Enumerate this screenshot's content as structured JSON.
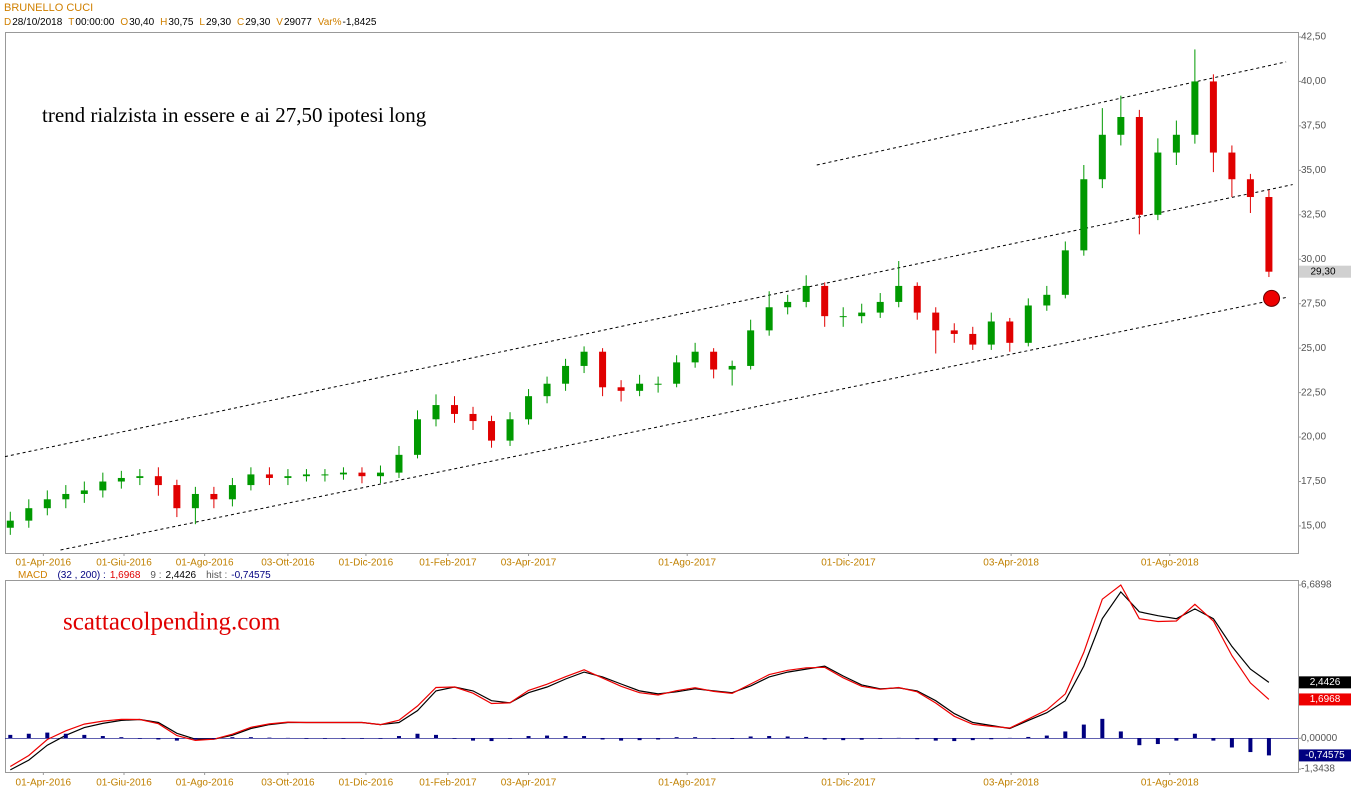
{
  "header": {
    "symbol": "BRUNELLO CUCI",
    "readout": [
      {
        "key": "D",
        "value": "28/10/2018"
      },
      {
        "key": "T",
        "value": "00:00:00"
      },
      {
        "key": "O",
        "value": "30,40"
      },
      {
        "key": "H",
        "value": "30,75"
      },
      {
        "key": "L",
        "value": "29,30"
      },
      {
        "key": "C",
        "value": "29,30"
      },
      {
        "key": "V",
        "value": "29077"
      },
      {
        "key": "Var%",
        "value": "-1,8425"
      }
    ]
  },
  "chart_data": [
    {
      "type": "candlestick",
      "annotations": [
        "trend rialzista in essere e ai 27,50 ipotesi long"
      ],
      "last_price_label": "29,30",
      "up_color": "#009900",
      "down_color": "#e00000",
      "x": [
        "2016-03-07",
        "2016-03-21",
        "2016-04-04",
        "2016-04-18",
        "2016-05-02",
        "2016-05-16",
        "2016-05-30",
        "2016-06-13",
        "2016-06-27",
        "2016-07-11",
        "2016-07-25",
        "2016-08-08",
        "2016-08-22",
        "2016-09-05",
        "2016-09-19",
        "2016-10-03",
        "2016-10-17",
        "2016-10-31",
        "2016-11-14",
        "2016-11-28",
        "2016-12-12",
        "2016-12-26",
        "2017-01-09",
        "2017-01-23",
        "2017-02-06",
        "2017-02-20",
        "2017-03-06",
        "2017-03-20",
        "2017-04-03",
        "2017-04-17",
        "2017-05-01",
        "2017-05-15",
        "2017-05-29",
        "2017-06-12",
        "2017-06-26",
        "2017-07-10",
        "2017-07-24",
        "2017-08-07",
        "2017-08-21",
        "2017-09-04",
        "2017-09-18",
        "2017-10-02",
        "2017-10-16",
        "2017-10-30",
        "2017-11-13",
        "2017-11-27",
        "2017-12-11",
        "2017-12-25",
        "2018-01-08",
        "2018-01-22",
        "2018-02-05",
        "2018-02-19",
        "2018-03-05",
        "2018-03-19",
        "2018-04-02",
        "2018-04-16",
        "2018-04-30",
        "2018-05-14",
        "2018-05-28",
        "2018-06-11",
        "2018-06-25",
        "2018-07-09",
        "2018-07-23",
        "2018-08-06",
        "2018-08-20",
        "2018-09-03",
        "2018-09-17",
        "2018-10-01",
        "2018-10-15"
      ],
      "open": [
        14.9,
        15.3,
        16.0,
        16.5,
        16.8,
        17.0,
        17.5,
        17.7,
        17.8,
        17.3,
        16.0,
        16.8,
        16.5,
        17.3,
        17.9,
        17.7,
        17.8,
        17.9,
        17.9,
        18.0,
        17.8,
        18.0,
        19.0,
        21.0,
        21.8,
        21.3,
        20.9,
        19.8,
        21.0,
        22.3,
        23.0,
        24.0,
        24.8,
        22.8,
        22.6,
        23.0,
        23.0,
        24.2,
        24.8,
        23.8,
        24.0,
        26.0,
        27.3,
        27.6,
        28.5,
        26.8,
        26.8,
        27.0,
        27.6,
        28.5,
        27.0,
        26.0,
        25.8,
        25.2,
        26.5,
        25.3,
        27.4,
        28.0,
        30.5,
        34.5,
        37.0,
        38.0,
        32.5,
        36.0,
        37.0,
        40.0,
        36.0,
        34.5,
        33.5
      ],
      "high": [
        15.8,
        16.5,
        17.0,
        17.3,
        17.5,
        18.0,
        18.1,
        18.2,
        18.3,
        17.6,
        17.2,
        17.2,
        17.7,
        18.3,
        18.3,
        18.2,
        18.2,
        18.2,
        18.3,
        18.3,
        18.4,
        19.5,
        21.5,
        22.4,
        22.3,
        21.7,
        21.2,
        21.4,
        22.7,
        23.4,
        24.4,
        25.1,
        25.0,
        23.2,
        23.5,
        23.4,
        24.6,
        25.3,
        25.0,
        24.3,
        26.6,
        28.2,
        28.0,
        29.1,
        28.7,
        27.3,
        27.5,
        28.1,
        29.9,
        28.7,
        27.3,
        26.4,
        26.2,
        27.0,
        26.7,
        27.8,
        28.5,
        31.0,
        35.3,
        38.5,
        39.2,
        38.4,
        36.8,
        37.8,
        41.8,
        40.4,
        36.4,
        34.8,
        33.9
      ],
      "low": [
        14.5,
        14.9,
        15.6,
        16.0,
        16.3,
        16.6,
        17.1,
        17.3,
        16.7,
        15.5,
        15.1,
        16.0,
        16.1,
        17.0,
        17.3,
        17.3,
        17.5,
        17.5,
        17.6,
        17.4,
        17.4,
        17.7,
        18.8,
        20.6,
        20.8,
        20.4,
        19.4,
        19.5,
        20.7,
        21.9,
        22.6,
        23.6,
        22.3,
        22.0,
        22.3,
        22.5,
        22.8,
        23.9,
        23.3,
        22.9,
        23.8,
        25.7,
        26.9,
        27.3,
        26.2,
        26.2,
        26.4,
        26.7,
        27.3,
        26.6,
        24.7,
        25.3,
        24.9,
        24.9,
        24.8,
        25.1,
        27.1,
        27.8,
        30.2,
        34.0,
        36.4,
        31.4,
        32.2,
        35.3,
        36.5,
        34.9,
        33.5,
        32.6,
        29.0
      ],
      "close": [
        15.3,
        16.0,
        16.5,
        16.8,
        17.0,
        17.5,
        17.7,
        17.8,
        17.3,
        16.0,
        16.8,
        16.5,
        17.3,
        17.9,
        17.7,
        17.8,
        17.9,
        17.9,
        18.0,
        17.8,
        18.0,
        19.0,
        21.0,
        21.8,
        21.3,
        20.9,
        19.8,
        21.0,
        22.3,
        23.0,
        24.0,
        24.8,
        22.8,
        22.6,
        23.0,
        23.0,
        24.2,
        24.8,
        23.8,
        24.0,
        26.0,
        27.3,
        27.6,
        28.5,
        26.8,
        26.8,
        27.0,
        27.6,
        28.5,
        27.0,
        26.0,
        25.8,
        25.2,
        26.5,
        25.3,
        27.4,
        28.0,
        30.5,
        34.5,
        37.0,
        38.0,
        32.5,
        36.0,
        37.0,
        40.0,
        36.0,
        34.5,
        33.5,
        29.3
      ],
      "trendlines": [
        {
          "x": [
            "2016-03-03",
            "2018-11-02"
          ],
          "y": [
            18.9,
            34.2
          ]
        },
        {
          "x": [
            "2016-04-14",
            "2018-10-30"
          ],
          "y": [
            13.65,
            27.88
          ]
        },
        {
          "x": [
            "2017-11-07",
            "2018-10-28"
          ],
          "y": [
            35.3,
            41.1
          ]
        }
      ],
      "marker": {
        "x": "2018-10-17",
        "y": 27.8,
        "color": "#ee0000"
      },
      "xlim": [
        "2016-03-03",
        "2018-11-06"
      ],
      "xticks": [
        {
          "value": "2016-04-01",
          "label": "01-Apr-2016"
        },
        {
          "value": "2016-06-01",
          "label": "01-Giu-2016"
        },
        {
          "value": "2016-08-01",
          "label": "01-Ago-2016"
        },
        {
          "value": "2016-10-03",
          "label": "03-Ott-2016"
        },
        {
          "value": "2016-12-01",
          "label": "01-Dic-2016"
        },
        {
          "value": "2017-02-01",
          "label": "01-Feb-2017"
        },
        {
          "value": "2017-04-03",
          "label": "03-Apr-2017"
        },
        {
          "value": "2017-08-01",
          "label": "01-Ago-2017"
        },
        {
          "value": "2017-12-01",
          "label": "01-Dic-2017"
        },
        {
          "value": "2018-04-03",
          "label": "03-Apr-2018"
        },
        {
          "value": "2018-08-01",
          "label": "01-Ago-2018"
        }
      ],
      "ylim": [
        13.48,
        42.78
      ],
      "yticks": [
        {
          "value": 15,
          "label": "15,00"
        },
        {
          "value": 17.5,
          "label": "17,50"
        },
        {
          "value": 20,
          "label": "20,00"
        },
        {
          "value": 22.5,
          "label": "22,50"
        },
        {
          "value": 25,
          "label": "25,00"
        },
        {
          "value": 27.5,
          "label": "27,50"
        },
        {
          "value": 30,
          "label": "30,00"
        },
        {
          "value": 32.5,
          "label": "32,50"
        },
        {
          "value": 35,
          "label": "35,00"
        },
        {
          "value": 37.5,
          "label": "37,50"
        },
        {
          "value": 40,
          "label": "40,00"
        },
        {
          "value": 42.5,
          "label": "42,50"
        }
      ]
    },
    {
      "type": "line",
      "annotations": [
        "scattacolpending.com"
      ],
      "readout": {
        "label": "MACD",
        "params": "(32 , 200) :",
        "macd": "1,6968",
        "signal_label": "9 :",
        "signal": "2,4426",
        "hist_label": "hist :",
        "hist": "-0,74575"
      },
      "x": [
        "2016-03-07",
        "2016-03-21",
        "2016-04-04",
        "2016-04-18",
        "2016-05-02",
        "2016-05-16",
        "2016-05-30",
        "2016-06-13",
        "2016-06-27",
        "2016-07-11",
        "2016-07-25",
        "2016-08-08",
        "2016-08-22",
        "2016-09-05",
        "2016-09-19",
        "2016-10-03",
        "2016-10-17",
        "2016-10-31",
        "2016-11-14",
        "2016-11-28",
        "2016-12-12",
        "2016-12-26",
        "2017-01-09",
        "2017-01-23",
        "2017-02-06",
        "2017-02-20",
        "2017-03-06",
        "2017-03-20",
        "2017-04-03",
        "2017-04-17",
        "2017-05-01",
        "2017-05-15",
        "2017-05-29",
        "2017-06-12",
        "2017-06-26",
        "2017-07-10",
        "2017-07-24",
        "2017-08-07",
        "2017-08-21",
        "2017-09-04",
        "2017-09-18",
        "2017-10-02",
        "2017-10-16",
        "2017-10-30",
        "2017-11-13",
        "2017-11-27",
        "2017-12-11",
        "2017-12-25",
        "2018-01-08",
        "2018-01-22",
        "2018-02-05",
        "2018-02-19",
        "2018-03-05",
        "2018-03-19",
        "2018-04-02",
        "2018-04-16",
        "2018-04-30",
        "2018-05-14",
        "2018-05-28",
        "2018-06-11",
        "2018-06-25",
        "2018-07-09",
        "2018-07-23",
        "2018-08-06",
        "2018-08-20",
        "2018-09-03",
        "2018-09-17",
        "2018-10-01",
        "2018-10-15"
      ],
      "series": [
        {
          "color": "#000000",
          "kind": "line",
          "values": [
            -1.38,
            -0.95,
            -0.3,
            0.13,
            0.47,
            0.65,
            0.78,
            0.82,
            0.69,
            0.22,
            -0.04,
            -0.04,
            0.13,
            0.43,
            0.6,
            0.69,
            0.69,
            0.69,
            0.69,
            0.69,
            0.6,
            0.69,
            1.21,
            2.07,
            2.24,
            2.07,
            1.64,
            1.55,
            1.99,
            2.24,
            2.59,
            2.89,
            2.68,
            2.37,
            2.07,
            1.94,
            2.03,
            2.16,
            2.07,
            1.99,
            2.29,
            2.68,
            2.89,
            3.02,
            3.15,
            2.72,
            2.33,
            2.16,
            2.2,
            2.07,
            1.64,
            1.08,
            0.69,
            0.56,
            0.43,
            0.78,
            1.12,
            1.64,
            3.15,
            5.22,
            6.39,
            5.52,
            5.35,
            5.22,
            5.65,
            5.22,
            4.01,
            3.02,
            2.4426
          ]
        },
        {
          "color": "#ee0000",
          "kind": "line",
          "values": [
            -1.23,
            -0.75,
            -0.05,
            0.33,
            0.62,
            0.75,
            0.83,
            0.82,
            0.64,
            0.12,
            -0.09,
            -0.04,
            0.18,
            0.48,
            0.63,
            0.71,
            0.69,
            0.69,
            0.69,
            0.69,
            0.6,
            0.79,
            1.41,
            2.22,
            2.24,
            1.97,
            1.52,
            1.55,
            2.09,
            2.36,
            2.69,
            2.99,
            2.63,
            2.27,
            1.99,
            1.89,
            2.08,
            2.21,
            2.05,
            1.96,
            2.37,
            2.78,
            2.97,
            3.08,
            3.1,
            2.64,
            2.27,
            2.14,
            2.22,
            2.03,
            1.54,
            0.96,
            0.61,
            0.52,
            0.45,
            0.84,
            1.24,
            1.94,
            3.75,
            6.07,
            6.69,
            5.22,
            5.1,
            5.12,
            5.85,
            5.12,
            3.61,
            2.42,
            1.6968
          ]
        },
        {
          "color": "#000080",
          "kind": "bar",
          "values": [
            0.15,
            0.2,
            0.25,
            0.2,
            0.15,
            0.1,
            0.05,
            0.0,
            -0.05,
            -0.1,
            -0.05,
            0.0,
            0.05,
            0.05,
            0.03,
            0.02,
            0.0,
            0.0,
            0.0,
            0.0,
            0.0,
            0.1,
            0.2,
            0.15,
            0.0,
            -0.1,
            -0.12,
            0.0,
            0.1,
            0.12,
            0.1,
            0.1,
            -0.05,
            -0.1,
            -0.08,
            -0.05,
            0.05,
            0.05,
            -0.02,
            -0.03,
            0.08,
            0.1,
            0.08,
            0.06,
            -0.05,
            -0.08,
            -0.06,
            -0.02,
            0.02,
            -0.04,
            -0.1,
            -0.12,
            -0.08,
            -0.04,
            0.02,
            0.06,
            0.12,
            0.3,
            0.6,
            0.85,
            0.3,
            -0.3,
            -0.25,
            -0.1,
            0.2,
            -0.1,
            -0.4,
            -0.6,
            -0.74575
          ]
        }
      ],
      "xlim": [
        "2016-03-03",
        "2018-11-06"
      ],
      "xticks": [
        {
          "value": "2016-04-01",
          "label": "01-Apr-2016"
        },
        {
          "value": "2016-06-01",
          "label": "01-Giu-2016"
        },
        {
          "value": "2016-08-01",
          "label": "01-Ago-2016"
        },
        {
          "value": "2016-10-03",
          "label": "03-Ott-2016"
        },
        {
          "value": "2016-12-01",
          "label": "01-Dic-2016"
        },
        {
          "value": "2017-02-01",
          "label": "01-Feb-2017"
        },
        {
          "value": "2017-04-03",
          "label": "03-Apr-2017"
        },
        {
          "value": "2017-08-01",
          "label": "01-Ago-2017"
        },
        {
          "value": "2017-12-01",
          "label": "01-Dic-2017"
        },
        {
          "value": "2018-04-03",
          "label": "03-Apr-2018"
        },
        {
          "value": "2018-08-01",
          "label": "01-Ago-2018"
        }
      ],
      "ylim": [
        -1.47,
        6.91
      ],
      "yticks": [
        {
          "value": -1.3438,
          "label": "-1,3438"
        },
        {
          "value": 0,
          "label": "0,00000"
        },
        {
          "value": 6.6898,
          "label": "6,6898"
        }
      ]
    }
  ]
}
